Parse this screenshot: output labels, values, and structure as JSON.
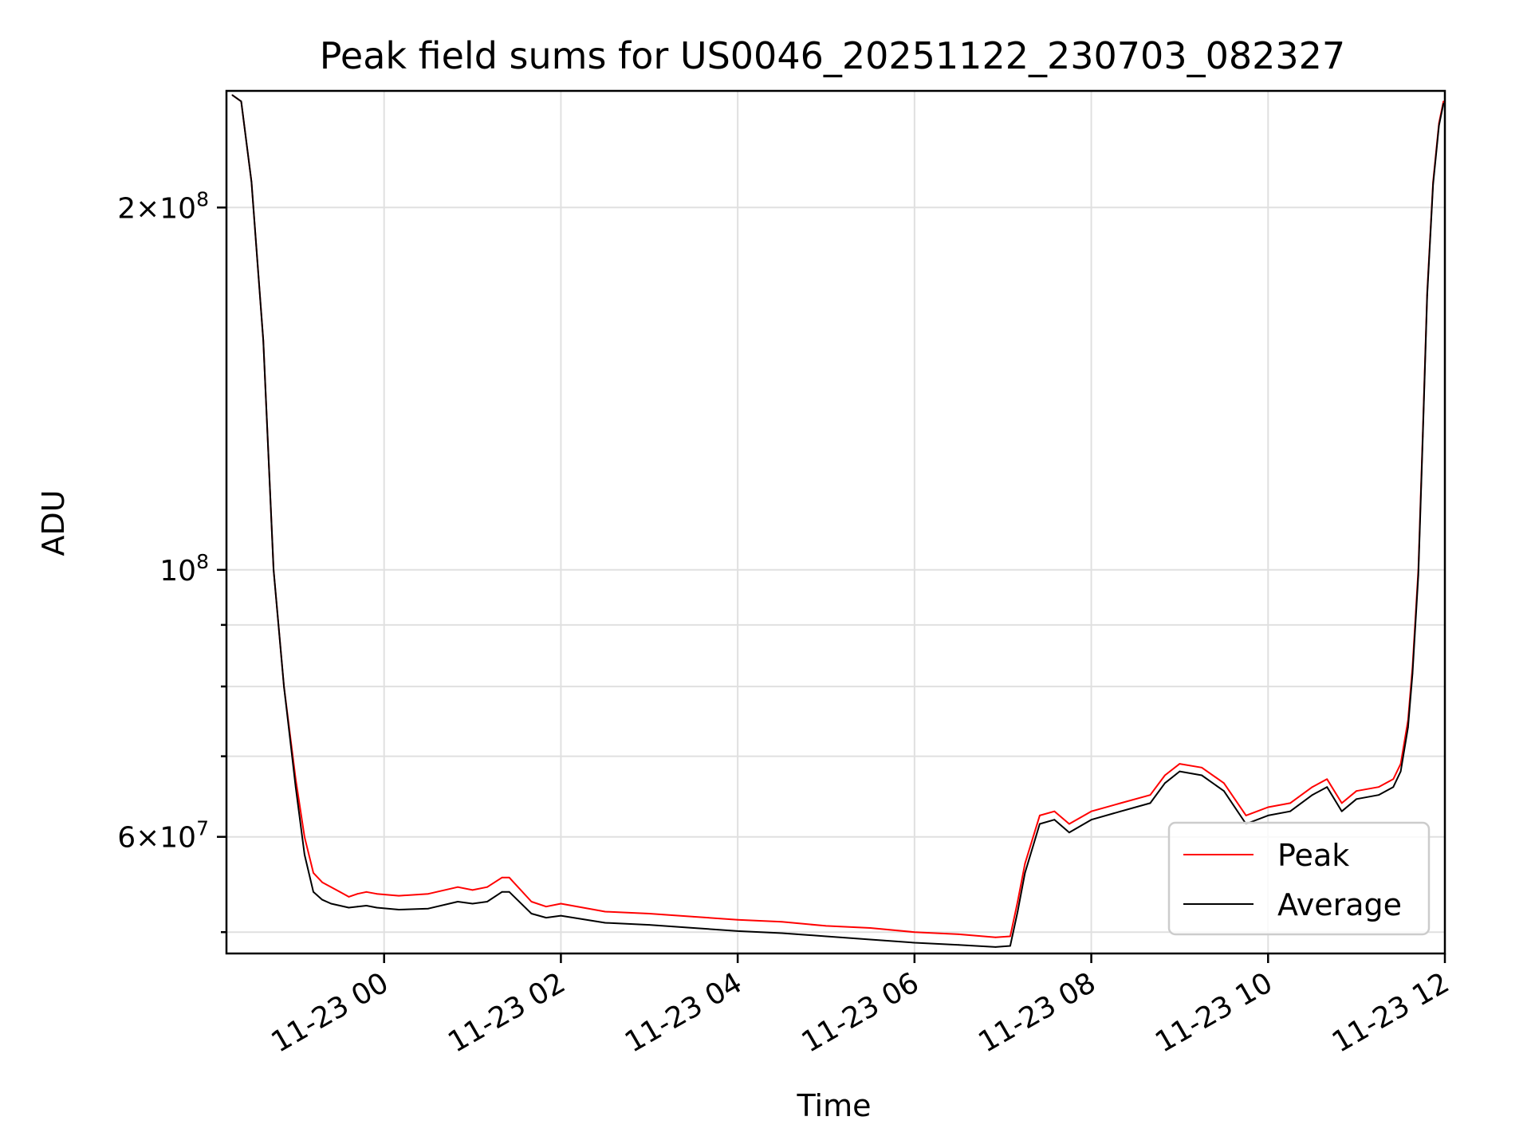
{
  "chart_data": {
    "type": "line",
    "title": "Peak field sums for US0046_20251122_230703_082327",
    "xlabel": "Time",
    "ylabel": "ADU",
    "xscale": "time",
    "yscale": "log",
    "xlim": [
      "2025-11-22 22:13",
      "2025-11-23 12:00"
    ],
    "ylim": [
      48000000,
      250000000
    ],
    "grid": true,
    "legend_position": "lower-right",
    "x_ticks": [
      "2025-11-23 00:00",
      "2025-11-23 02:00",
      "2025-11-23 04:00",
      "2025-11-23 06:00",
      "2025-11-23 08:00",
      "2025-11-23 10:00",
      "2025-11-23 12:00"
    ],
    "x_tick_labels": [
      "11-23 00",
      "11-23 02",
      "11-23 04",
      "11-23 06",
      "11-23 08",
      "11-23 10",
      "11-23 12"
    ],
    "y_major_ticks": [
      {
        "value": 60000000,
        "mant": "6",
        "exp": "7"
      },
      {
        "value": 100000000,
        "mant": "",
        "exp": "8"
      },
      {
        "value": 200000000,
        "mant": "2",
        "exp": "8"
      }
    ],
    "y_minor_ticks": [
      50000000,
      70000000,
      80000000,
      90000000
    ],
    "series": [
      {
        "name": "Peak",
        "color": "#ff0000",
        "x": [
          "2025-11-22 22:17",
          "2025-11-22 22:23",
          "2025-11-22 22:30",
          "2025-11-22 22:38",
          "2025-11-22 22:45",
          "2025-11-22 22:52",
          "2025-11-22 23:00",
          "2025-11-22 23:06",
          "2025-11-22 23:12",
          "2025-11-22 23:18",
          "2025-11-22 23:24",
          "2025-11-22 23:30",
          "2025-11-22 23:36",
          "2025-11-22 23:42",
          "2025-11-22 23:48",
          "2025-11-22 23:55",
          "2025-11-23 00:10",
          "2025-11-23 00:30",
          "2025-11-23 00:50",
          "2025-11-23 01:00",
          "2025-11-23 01:10",
          "2025-11-23 01:20",
          "2025-11-23 01:25",
          "2025-11-23 01:40",
          "2025-11-23 01:50",
          "2025-11-23 02:00",
          "2025-11-23 02:30",
          "2025-11-23 03:00",
          "2025-11-23 03:30",
          "2025-11-23 04:00",
          "2025-11-23 04:30",
          "2025-11-23 05:00",
          "2025-11-23 05:30",
          "2025-11-23 06:00",
          "2025-11-23 06:30",
          "2025-11-23 06:55",
          "2025-11-23 07:05",
          "2025-11-23 07:10",
          "2025-11-23 07:15",
          "2025-11-23 07:25",
          "2025-11-23 07:35",
          "2025-11-23 07:45",
          "2025-11-23 08:00",
          "2025-11-23 08:20",
          "2025-11-23 08:40",
          "2025-11-23 08:50",
          "2025-11-23 09:00",
          "2025-11-23 09:15",
          "2025-11-23 09:30",
          "2025-11-23 09:45",
          "2025-11-23 10:00",
          "2025-11-23 10:15",
          "2025-11-23 10:30",
          "2025-11-23 10:40",
          "2025-11-23 10:50",
          "2025-11-23 11:00",
          "2025-11-23 11:15",
          "2025-11-23 11:25",
          "2025-11-23 11:30",
          "2025-11-23 11:35",
          "2025-11-23 11:38",
          "2025-11-23 11:42",
          "2025-11-23 11:45",
          "2025-11-23 11:48",
          "2025-11-23 11:52",
          "2025-11-23 11:56",
          "2025-11-23 11:59"
        ],
        "values": [
          248000000,
          245000000,
          210000000,
          155000000,
          100000000,
          80000000,
          67000000,
          60000000,
          56000000,
          55000000,
          54500000,
          54000000,
          53500000,
          53800000,
          54000000,
          53800000,
          53600000,
          53800000,
          54500000,
          54200000,
          54500000,
          55500000,
          55500000,
          53000000,
          52500000,
          52800000,
          52000000,
          51800000,
          51500000,
          51200000,
          51000000,
          50600000,
          50400000,
          50000000,
          49800000,
          49500000,
          49600000,
          53000000,
          57000000,
          62500000,
          63000000,
          61500000,
          63000000,
          64000000,
          65000000,
          67500000,
          69000000,
          68500000,
          66500000,
          62500000,
          63500000,
          64000000,
          66000000,
          67000000,
          64000000,
          65500000,
          66000000,
          67000000,
          69000000,
          75000000,
          83000000,
          100000000,
          130000000,
          170000000,
          210000000,
          235000000,
          245000000
        ]
      },
      {
        "name": "Average",
        "color": "#000000",
        "x": [
          "2025-11-22 22:17",
          "2025-11-22 22:23",
          "2025-11-22 22:30",
          "2025-11-22 22:38",
          "2025-11-22 22:45",
          "2025-11-22 22:52",
          "2025-11-22 23:00",
          "2025-11-22 23:06",
          "2025-11-22 23:12",
          "2025-11-22 23:18",
          "2025-11-22 23:24",
          "2025-11-22 23:30",
          "2025-11-22 23:36",
          "2025-11-22 23:42",
          "2025-11-22 23:48",
          "2025-11-22 23:55",
          "2025-11-23 00:10",
          "2025-11-23 00:30",
          "2025-11-23 00:50",
          "2025-11-23 01:00",
          "2025-11-23 01:10",
          "2025-11-23 01:20",
          "2025-11-23 01:25",
          "2025-11-23 01:40",
          "2025-11-23 01:50",
          "2025-11-23 02:00",
          "2025-11-23 02:30",
          "2025-11-23 03:00",
          "2025-11-23 03:30",
          "2025-11-23 04:00",
          "2025-11-23 04:30",
          "2025-11-23 05:00",
          "2025-11-23 05:30",
          "2025-11-23 06:00",
          "2025-11-23 06:30",
          "2025-11-23 06:55",
          "2025-11-23 07:05",
          "2025-11-23 07:10",
          "2025-11-23 07:15",
          "2025-11-23 07:25",
          "2025-11-23 07:35",
          "2025-11-23 07:45",
          "2025-11-23 08:00",
          "2025-11-23 08:20",
          "2025-11-23 08:40",
          "2025-11-23 08:50",
          "2025-11-23 09:00",
          "2025-11-23 09:15",
          "2025-11-23 09:30",
          "2025-11-23 09:45",
          "2025-11-23 10:00",
          "2025-11-23 10:15",
          "2025-11-23 10:30",
          "2025-11-23 10:40",
          "2025-11-23 10:50",
          "2025-11-23 11:00",
          "2025-11-23 11:15",
          "2025-11-23 11:25",
          "2025-11-23 11:30",
          "2025-11-23 11:35",
          "2025-11-23 11:38",
          "2025-11-23 11:42",
          "2025-11-23 11:45",
          "2025-11-23 11:48",
          "2025-11-23 11:52",
          "2025-11-23 11:56",
          "2025-11-23 11:59"
        ],
        "values": [
          248000000,
          245000000,
          210000000,
          155000000,
          100000000,
          80000000,
          66000000,
          58000000,
          54000000,
          53200000,
          52800000,
          52600000,
          52400000,
          52500000,
          52600000,
          52400000,
          52200000,
          52300000,
          53000000,
          52800000,
          53000000,
          54000000,
          54000000,
          51800000,
          51400000,
          51600000,
          50900000,
          50700000,
          50400000,
          50100000,
          49900000,
          49600000,
          49300000,
          49000000,
          48800000,
          48600000,
          48700000,
          52000000,
          56000000,
          61500000,
          62000000,
          60500000,
          62000000,
          63000000,
          64000000,
          66500000,
          68000000,
          67500000,
          65500000,
          61500000,
          62500000,
          63000000,
          65000000,
          66000000,
          63000000,
          64500000,
          65000000,
          66000000,
          68000000,
          74000000,
          82000000,
          99000000,
          129000000,
          169000000,
          209000000,
          234000000,
          244000000
        ]
      }
    ]
  }
}
